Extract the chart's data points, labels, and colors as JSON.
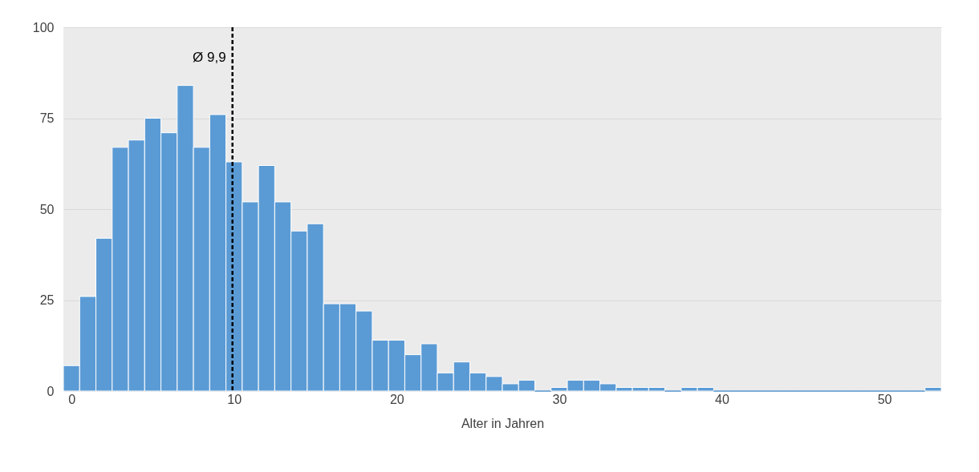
{
  "chart_data": {
    "type": "bar",
    "xlabel": "Alter in Jahren",
    "x": [
      0,
      1,
      2,
      3,
      4,
      5,
      6,
      7,
      8,
      9,
      10,
      11,
      12,
      13,
      14,
      15,
      16,
      17,
      18,
      19,
      20,
      21,
      22,
      23,
      24,
      25,
      26,
      27,
      28,
      29,
      30,
      31,
      32,
      33,
      34,
      35,
      36,
      37,
      38,
      39,
      40,
      41,
      42,
      43,
      44,
      45,
      46,
      47,
      48,
      49,
      50,
      51,
      52,
      53
    ],
    "values": [
      7,
      26,
      42,
      67,
      69,
      75,
      71,
      84,
      67,
      76,
      63,
      52,
      62,
      52,
      44,
      46,
      24,
      24,
      22,
      14,
      14,
      10,
      13,
      5,
      8,
      5,
      4,
      2,
      3,
      0,
      1,
      3,
      3,
      2,
      1,
      1,
      1,
      0,
      1,
      1,
      0,
      0,
      0,
      0,
      0,
      0,
      0,
      0,
      0,
      0,
      0,
      0,
      0,
      1
    ],
    "color": "#5b9bd5",
    "xlim": [
      -0.5,
      53.5
    ],
    "xticks": [
      0,
      10,
      20,
      30,
      40,
      50
    ],
    "ylim": [
      0,
      100
    ],
    "yticks": [
      0,
      25,
      50,
      75,
      100
    ],
    "grid": "y",
    "ref_lines": [
      {
        "axis": "x",
        "value": 9.9,
        "label": "Ø 9,9",
        "color": "#000000",
        "line_style": "dashed"
      }
    ]
  }
}
